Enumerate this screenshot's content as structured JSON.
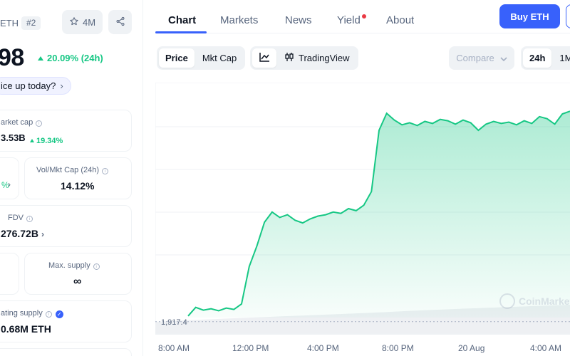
{
  "coin": {
    "symbol": "ETH",
    "rank": "#2",
    "watchlist_count": "4M",
    "price": "98",
    "change_24h": "20.09% (24h)",
    "question": "ice up today?"
  },
  "stats": {
    "market_cap_label": "arket cap",
    "market_cap_value": "3.53B",
    "market_cap_change": "19.34%",
    "vol_mkt_cap_label": "Vol/Mkt Cap (24h)",
    "vol_mkt_cap_value": "14.12%",
    "fdv_label": "FDV",
    "fdv_value": "276.72B",
    "max_supply_label": "Max. supply",
    "max_supply_value": "∞",
    "circ_supply_label": "ating supply",
    "circ_supply_value": "0.68M ETH"
  },
  "tabs": [
    "Chart",
    "Markets",
    "News",
    "Yield",
    "About"
  ],
  "buy_label": "Buy ETH",
  "chart_modes": [
    "Price",
    "Mkt Cap"
  ],
  "chart_tools": {
    "tradingview": "TradingView"
  },
  "compare_label": "Compare",
  "ranges": [
    "24h",
    "1M"
  ],
  "colors": {
    "accent": "#3861fb",
    "up": "#16c784",
    "notify": "#ea3943"
  },
  "chart_data": {
    "type": "area",
    "x_labels": [
      "8:00 AM",
      "12:00 PM",
      "4:00 PM",
      "8:00 PM",
      "20 Aug",
      "4:00 AM"
    ],
    "min_label": "1,917.4",
    "watermark": "CoinMarket",
    "series": [
      {
        "values": [
          1917.4,
          1930,
          1926,
          1928,
          1925,
          1929,
          1927,
          1935,
          1990,
          2020,
          2055,
          2070,
          2062,
          2066,
          2058,
          2054,
          2060,
          2064,
          2066,
          2070,
          2068,
          2075,
          2072,
          2080,
          2100,
          2190,
          2215,
          2205,
          2198,
          2201,
          2197,
          2203,
          2200,
          2206,
          2204,
          2199,
          2205,
          2201,
          2190,
          2199,
          2203,
          2200,
          2202,
          2198,
          2204,
          2200,
          2210,
          2207,
          2199,
          2214,
          2218
        ]
      }
    ]
  }
}
